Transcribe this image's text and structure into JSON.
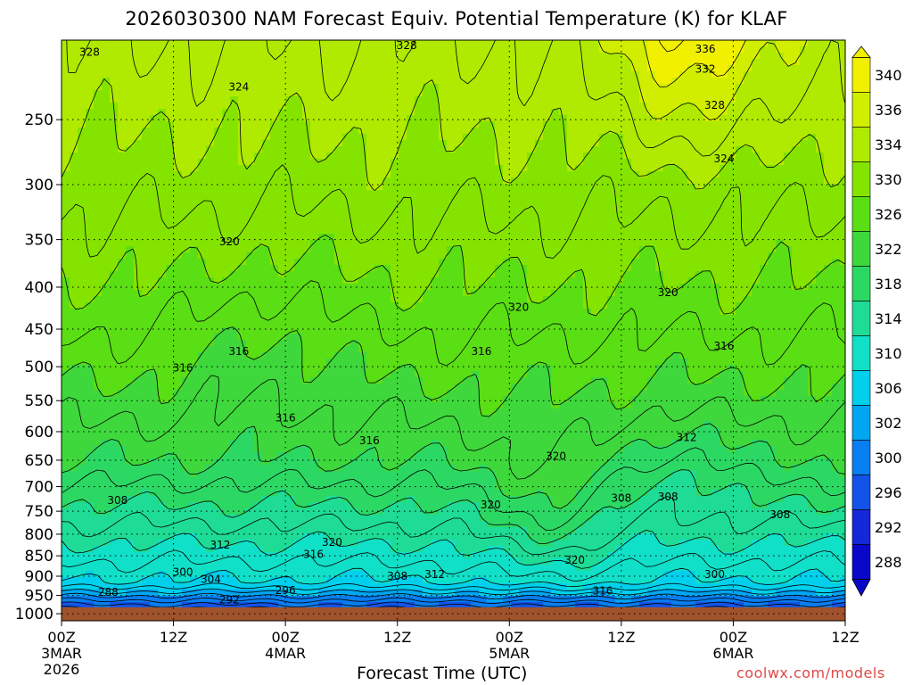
{
  "title": "2026030300 NAM Forecast Equiv. Potential Temperature (K) for KLAF",
  "xlabel": "Forecast Time (UTC)",
  "credit": "coolwx.com/models",
  "colors": {
    "ground": "#a0522d",
    "contour": "#000000",
    "grid": "#000000"
  },
  "chart_data": {
    "type": "heatmap",
    "title": "2026030300 NAM Forecast Equiv. Potential Temperature (K) for KLAF",
    "xlabel": "Forecast Time (UTC)",
    "ylabel": "",
    "y_scale": "log",
    "y_inverted": true,
    "ylim": [
      1020,
      200
    ],
    "xlim": [
      0,
      84
    ],
    "y_ticks": [
      250,
      300,
      350,
      400,
      450,
      500,
      550,
      600,
      650,
      700,
      750,
      800,
      850,
      900,
      950,
      1000
    ],
    "x_ticks": [
      {
        "hour": 0,
        "label": "00Z",
        "date": "3MAR",
        "year": "2026"
      },
      {
        "hour": 12,
        "label": "12Z",
        "date": "",
        "year": ""
      },
      {
        "hour": 24,
        "label": "00Z",
        "date": "4MAR",
        "year": ""
      },
      {
        "hour": 36,
        "label": "12Z",
        "date": "",
        "year": ""
      },
      {
        "hour": 48,
        "label": "00Z",
        "date": "5MAR",
        "year": ""
      },
      {
        "hour": 60,
        "label": "12Z",
        "date": "",
        "year": ""
      },
      {
        "hour": 72,
        "label": "00Z",
        "date": "6MAR",
        "year": ""
      },
      {
        "hour": 84,
        "label": "12Z",
        "date": "",
        "year": ""
      }
    ],
    "grid": true,
    "colorbar": {
      "labels": [
        340,
        336,
        334,
        330,
        326,
        322,
        318,
        314,
        310,
        306,
        302,
        300,
        296,
        292,
        288
      ],
      "colors": [
        "#f0f000",
        "#d2ee00",
        "#b0ea00",
        "#84e400",
        "#5ade14",
        "#3ed83c",
        "#2cd864",
        "#1edc96",
        "#10e0c8",
        "#00d0ec",
        "#00a6f0",
        "#087ef0",
        "#1254e8",
        "#1428da",
        "#0a08c8"
      ],
      "placement": "right"
    },
    "surface_pressure": 982,
    "contour_interval": 2,
    "contour_labels": [
      {
        "hour": 3,
        "p": 207,
        "value": 328
      },
      {
        "hour": 37,
        "p": 203,
        "value": 328
      },
      {
        "hour": 19,
        "p": 228,
        "value": 324
      },
      {
        "hour": 69,
        "p": 205,
        "value": 336
      },
      {
        "hour": 69,
        "p": 217,
        "value": 332
      },
      {
        "hour": 70,
        "p": 240,
        "value": 328
      },
      {
        "hour": 71,
        "p": 279,
        "value": 324
      },
      {
        "hour": 18,
        "p": 352,
        "value": 320
      },
      {
        "hour": 49,
        "p": 423,
        "value": 320
      },
      {
        "hour": 65,
        "p": 406,
        "value": 320
      },
      {
        "hour": 71,
        "p": 472,
        "value": 316
      },
      {
        "hour": 45,
        "p": 479,
        "value": 316
      },
      {
        "hour": 19,
        "p": 479,
        "value": 316
      },
      {
        "hour": 13,
        "p": 502,
        "value": 316
      },
      {
        "hour": 24,
        "p": 577,
        "value": 316
      },
      {
        "hour": 33,
        "p": 615,
        "value": 316
      },
      {
        "hour": 53,
        "p": 643,
        "value": 320
      },
      {
        "hour": 67,
        "p": 610,
        "value": 312
      },
      {
        "hour": 6,
        "p": 728,
        "value": 308
      },
      {
        "hour": 46,
        "p": 737,
        "value": 320
      },
      {
        "hour": 60,
        "p": 723,
        "value": 308
      },
      {
        "hour": 65,
        "p": 720,
        "value": 308
      },
      {
        "hour": 77,
        "p": 757,
        "value": 308
      },
      {
        "hour": 17,
        "p": 825,
        "value": 312
      },
      {
        "hour": 29,
        "p": 818,
        "value": 320
      },
      {
        "hour": 27,
        "p": 846,
        "value": 316
      },
      {
        "hour": 13,
        "p": 890,
        "value": 300
      },
      {
        "hour": 16,
        "p": 908,
        "value": 304
      },
      {
        "hour": 36,
        "p": 900,
        "value": 308
      },
      {
        "hour": 40,
        "p": 895,
        "value": 312
      },
      {
        "hour": 55,
        "p": 860,
        "value": 320
      },
      {
        "hour": 24,
        "p": 937,
        "value": 296
      },
      {
        "hour": 5,
        "p": 941,
        "value": 288
      },
      {
        "hour": 18,
        "p": 962,
        "value": 292
      },
      {
        "hour": 58,
        "p": 938,
        "value": 316
      },
      {
        "hour": 70,
        "p": 896,
        "value": 300
      }
    ]
  }
}
